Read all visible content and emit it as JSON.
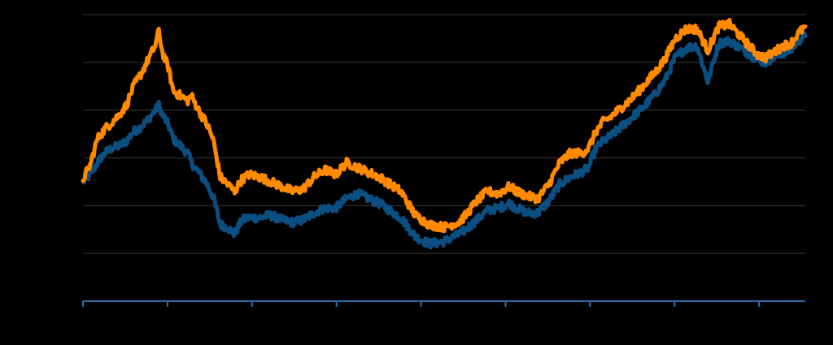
{
  "chart_data": {
    "type": "line",
    "title": "",
    "xlabel": "",
    "ylabel": "",
    "grid": true,
    "legend": "none",
    "ylim": [
      0,
      6
    ],
    "yticks": [
      1,
      2,
      3,
      4,
      5,
      6
    ],
    "xlim": [
      0,
      1000
    ],
    "xticks": [
      0,
      117,
      234,
      351,
      468,
      585,
      702,
      819,
      936
    ],
    "colors": {
      "background": "#000000",
      "grid": "#3a3a3a",
      "axis": "#2e6dad",
      "series": [
        "#ff8a00",
        "#0b4f82"
      ]
    },
    "series": [
      {
        "color": "#ff8a00",
        "x": [
          0,
          10,
          20,
          30,
          40,
          50,
          60,
          70,
          80,
          90,
          100,
          105,
          110,
          118,
          125,
          135,
          145,
          150,
          160,
          170,
          180,
          190,
          200,
          210,
          220,
          230,
          245,
          260,
          275,
          290,
          305,
          320,
          335,
          350,
          365,
          380,
          395,
          410,
          425,
          440,
          460,
          480,
          500,
          520,
          530,
          545,
          560,
          575,
          590,
          600,
          615,
          630,
          645,
          660,
          675,
          690,
          700,
          710,
          720,
          730,
          745,
          760,
          775,
          790,
          805,
          820,
          835,
          850,
          865,
          880,
          895,
          910,
          925,
          935,
          945,
          955,
          970,
          980,
          985,
          990,
          1000
        ],
        "values": [
          2.55,
          2.85,
          3.4,
          3.6,
          3.75,
          3.9,
          4.1,
          4.5,
          4.75,
          5.05,
          5.35,
          5.65,
          5.2,
          4.9,
          4.4,
          4.3,
          4.2,
          4.3,
          4.0,
          3.75,
          3.4,
          2.6,
          2.45,
          2.3,
          2.55,
          2.65,
          2.6,
          2.5,
          2.4,
          2.3,
          2.35,
          2.6,
          2.75,
          2.65,
          2.9,
          2.8,
          2.7,
          2.6,
          2.45,
          2.3,
          1.8,
          1.6,
          1.55,
          1.65,
          1.8,
          2.1,
          2.3,
          2.25,
          2.4,
          2.3,
          2.2,
          2.15,
          2.45,
          2.9,
          3.1,
          3.1,
          3.2,
          3.55,
          3.75,
          3.85,
          4.05,
          4.25,
          4.5,
          4.75,
          5.05,
          5.5,
          5.7,
          5.7,
          5.25,
          5.75,
          5.8,
          5.55,
          5.3,
          5.15,
          5.1,
          5.2,
          5.35,
          5.4,
          5.5,
          5.6,
          5.75
        ]
      },
      {
        "color": "#0b4f82",
        "x": [
          0,
          10,
          20,
          30,
          40,
          50,
          60,
          70,
          80,
          90,
          100,
          105,
          110,
          118,
          125,
          135,
          145,
          150,
          160,
          170,
          180,
          190,
          200,
          210,
          220,
          230,
          245,
          260,
          275,
          290,
          305,
          320,
          335,
          350,
          365,
          380,
          395,
          410,
          425,
          440,
          460,
          480,
          500,
          520,
          530,
          545,
          560,
          575,
          590,
          600,
          615,
          630,
          645,
          660,
          675,
          690,
          700,
          710,
          720,
          730,
          745,
          760,
          775,
          790,
          805,
          820,
          835,
          850,
          865,
          880,
          895,
          910,
          925,
          935,
          945,
          955,
          970,
          980,
          985,
          990,
          1000
        ],
        "values": [
          2.5,
          2.65,
          2.9,
          3.1,
          3.2,
          3.25,
          3.35,
          3.55,
          3.65,
          3.8,
          4.0,
          4.1,
          3.9,
          3.7,
          3.4,
          3.25,
          3.1,
          2.9,
          2.7,
          2.5,
          2.2,
          1.6,
          1.55,
          1.4,
          1.7,
          1.75,
          1.75,
          1.8,
          1.7,
          1.65,
          1.7,
          1.85,
          1.95,
          1.95,
          2.15,
          2.25,
          2.15,
          2.05,
          1.9,
          1.75,
          1.35,
          1.2,
          1.25,
          1.4,
          1.5,
          1.7,
          1.9,
          1.95,
          2.05,
          1.95,
          1.85,
          1.85,
          2.1,
          2.45,
          2.6,
          2.7,
          2.8,
          3.2,
          3.35,
          3.45,
          3.65,
          3.85,
          4.05,
          4.3,
          4.6,
          5.1,
          5.3,
          5.35,
          4.6,
          5.4,
          5.45,
          5.3,
          5.15,
          5.05,
          5.0,
          5.1,
          5.2,
          5.25,
          5.35,
          5.45,
          5.55
        ]
      }
    ]
  }
}
